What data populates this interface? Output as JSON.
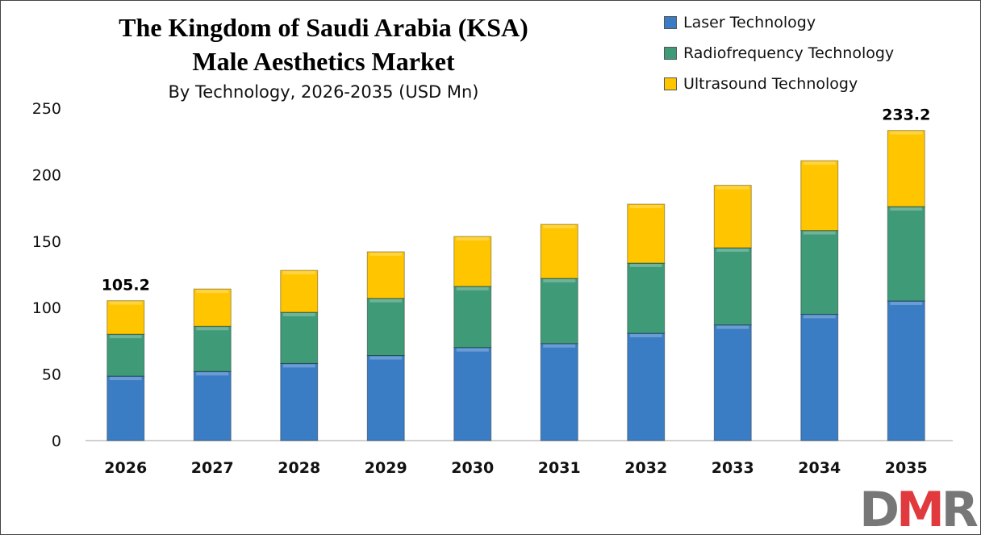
{
  "chart_data": {
    "type": "bar",
    "stacked": true,
    "title": "The Kingdom of Saudi Arabia (KSA) Male Aesthetics Market",
    "title_lines": [
      "The Kingdom of Saudi Arabia (KSA)",
      "Male Aesthetics Market"
    ],
    "subtitle": "By Technology, 2026-2035 (USD Mn)",
    "categories": [
      "2026",
      "2027",
      "2028",
      "2029",
      "2030",
      "2031",
      "2032",
      "2033",
      "2034",
      "2035"
    ],
    "series": [
      {
        "name": "Laser Technology",
        "color": "#3a7dc4",
        "values": [
          48.5,
          52,
          58,
          64,
          70,
          73,
          80.7,
          87,
          95,
          105
        ]
      },
      {
        "name": "Radiofrequency Technology",
        "color": "#3f9a78",
        "values": [
          31.5,
          34,
          38.5,
          43,
          46,
          49,
          52.8,
          58,
          63,
          71
        ]
      },
      {
        "name": "Ultrasound Technology",
        "color": "#ffc600",
        "values": [
          25.2,
          28,
          31.5,
          35,
          37.5,
          40.6,
          44.3,
          47,
          52.5,
          57.2
        ]
      }
    ],
    "annotations": [
      {
        "category": "2026",
        "label": "105.2"
      },
      {
        "category": "2035",
        "label": "233.2"
      }
    ],
    "ylim": [
      0,
      250
    ],
    "yticks": [
      "0",
      "50",
      "100",
      "150",
      "200",
      "250"
    ],
    "xlabel": "",
    "ylabel": "",
    "grid": false,
    "legend_position": "top-right"
  },
  "logo": {
    "text": "DMR",
    "color_d": "#777777",
    "color_m": "#e0393e",
    "color_r": "#777777"
  }
}
